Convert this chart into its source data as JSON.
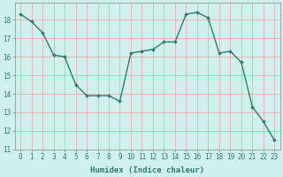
{
  "x": [
    0,
    1,
    2,
    3,
    4,
    5,
    6,
    7,
    8,
    9,
    10,
    11,
    12,
    13,
    14,
    15,
    16,
    17,
    18,
    19,
    20,
    21,
    22,
    23
  ],
  "y": [
    18.3,
    17.9,
    17.3,
    16.1,
    16.0,
    14.5,
    13.9,
    13.9,
    13.9,
    13.6,
    16.2,
    16.3,
    16.4,
    16.8,
    16.8,
    18.3,
    18.4,
    18.1,
    16.2,
    16.3,
    15.7,
    13.3,
    12.5,
    11.5
  ],
  "line_color": "#2e7d6e",
  "marker": "D",
  "marker_size": 2.0,
  "line_width": 1.0,
  "xlabel": "Humidex (Indice chaleur)",
  "xlabel_fontsize": 6.5,
  "tick_fontsize": 5.5,
  "xlim": [
    -0.5,
    23.5
  ],
  "ylim": [
    11,
    18.9
  ],
  "yticks": [
    11,
    12,
    13,
    14,
    15,
    16,
    17,
    18
  ],
  "xticks": [
    0,
    1,
    2,
    3,
    4,
    5,
    6,
    7,
    8,
    9,
    10,
    11,
    12,
    13,
    14,
    15,
    16,
    17,
    18,
    19,
    20,
    21,
    22,
    23
  ],
  "bg_color": "#cff0ec",
  "grid_color": "#f0a0a0",
  "spine_color": "#888888"
}
